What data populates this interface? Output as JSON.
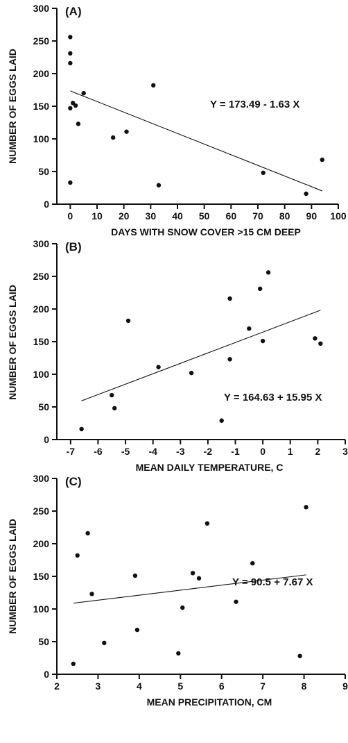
{
  "chart_data": [
    {
      "type": "scatter",
      "panel_label": "(A)",
      "xlabel": "DAYS WITH SNOW COVER >15 CM DEEP",
      "ylabel": "NUMBER OF EGGS LAID",
      "xlim": [
        -5,
        100
      ],
      "ylim": [
        0,
        300
      ],
      "xticks": [
        0,
        10,
        20,
        30,
        40,
        50,
        60,
        70,
        80,
        90,
        100
      ],
      "yticks": [
        0,
        50,
        100,
        150,
        200,
        250,
        300
      ],
      "equation": "Y = 173.49 - 1.63 X",
      "fit": {
        "intercept": 173.49,
        "slope": -1.63,
        "x_range": [
          0,
          94
        ]
      },
      "points": [
        {
          "x": 0,
          "y": 256
        },
        {
          "x": 0,
          "y": 231
        },
        {
          "x": 0,
          "y": 216
        },
        {
          "x": 0,
          "y": 147
        },
        {
          "x": 0,
          "y": 33
        },
        {
          "x": 1,
          "y": 155
        },
        {
          "x": 2,
          "y": 151
        },
        {
          "x": 3,
          "y": 123
        },
        {
          "x": 5,
          "y": 170
        },
        {
          "x": 16,
          "y": 102
        },
        {
          "x": 21,
          "y": 111
        },
        {
          "x": 31,
          "y": 182
        },
        {
          "x": 33,
          "y": 29
        },
        {
          "x": 72,
          "y": 48
        },
        {
          "x": 88,
          "y": 16
        },
        {
          "x": 94,
          "y": 68
        }
      ]
    },
    {
      "type": "scatter",
      "panel_label": "(B)",
      "xlabel": "MEAN DAILY TEMPERATURE, C",
      "ylabel": "NUMBER OF EGGS LAID",
      "xlim": [
        -7.5,
        3
      ],
      "ylim": [
        0,
        300
      ],
      "xticks": [
        -7,
        -6,
        -5,
        -4,
        -3,
        -2,
        -1,
        0,
        1,
        2,
        3
      ],
      "yticks": [
        0,
        50,
        100,
        150,
        200,
        250,
        300
      ],
      "equation": "Y = 164.63 + 15.95 X",
      "fit": {
        "intercept": 164.63,
        "slope": 15.95,
        "x_range": [
          -6.6,
          2.1
        ]
      },
      "points": [
        {
          "x": -6.6,
          "y": 16
        },
        {
          "x": -5.5,
          "y": 68
        },
        {
          "x": -5.4,
          "y": 48
        },
        {
          "x": -4.9,
          "y": 182
        },
        {
          "x": -3.8,
          "y": 111
        },
        {
          "x": -2.6,
          "y": 102
        },
        {
          "x": -1.5,
          "y": 29
        },
        {
          "x": -1.2,
          "y": 216
        },
        {
          "x": -1.2,
          "y": 123
        },
        {
          "x": -0.5,
          "y": 170
        },
        {
          "x": -0.1,
          "y": 231
        },
        {
          "x": 0.0,
          "y": 151
        },
        {
          "x": 0.2,
          "y": 256
        },
        {
          "x": 1.9,
          "y": 155
        },
        {
          "x": 2.1,
          "y": 147
        }
      ]
    },
    {
      "type": "scatter",
      "panel_label": "(C)",
      "xlabel": "MEAN PRECIPITATION, CM",
      "ylabel": "NUMBER OF EGGS LAID",
      "xlim": [
        2,
        9
      ],
      "ylim": [
        0,
        300
      ],
      "xticks": [
        2,
        3,
        4,
        5,
        6,
        7,
        8,
        9
      ],
      "yticks": [
        0,
        50,
        100,
        150,
        200,
        250,
        300
      ],
      "equation": "Y = 90.5 + 7.67 X",
      "fit": {
        "intercept": 90.5,
        "slope": 7.67,
        "x_range": [
          2.4,
          8.05
        ]
      },
      "points": [
        {
          "x": 2.4,
          "y": 16
        },
        {
          "x": 2.5,
          "y": 182
        },
        {
          "x": 2.75,
          "y": 216
        },
        {
          "x": 2.85,
          "y": 123
        },
        {
          "x": 3.15,
          "y": 48
        },
        {
          "x": 3.9,
          "y": 151
        },
        {
          "x": 3.95,
          "y": 68
        },
        {
          "x": 4.95,
          "y": 32
        },
        {
          "x": 5.05,
          "y": 102
        },
        {
          "x": 5.3,
          "y": 155
        },
        {
          "x": 5.45,
          "y": 147
        },
        {
          "x": 5.65,
          "y": 231
        },
        {
          "x": 6.35,
          "y": 111
        },
        {
          "x": 6.75,
          "y": 170
        },
        {
          "x": 7.9,
          "y": 28
        },
        {
          "x": 8.05,
          "y": 256
        }
      ]
    }
  ]
}
